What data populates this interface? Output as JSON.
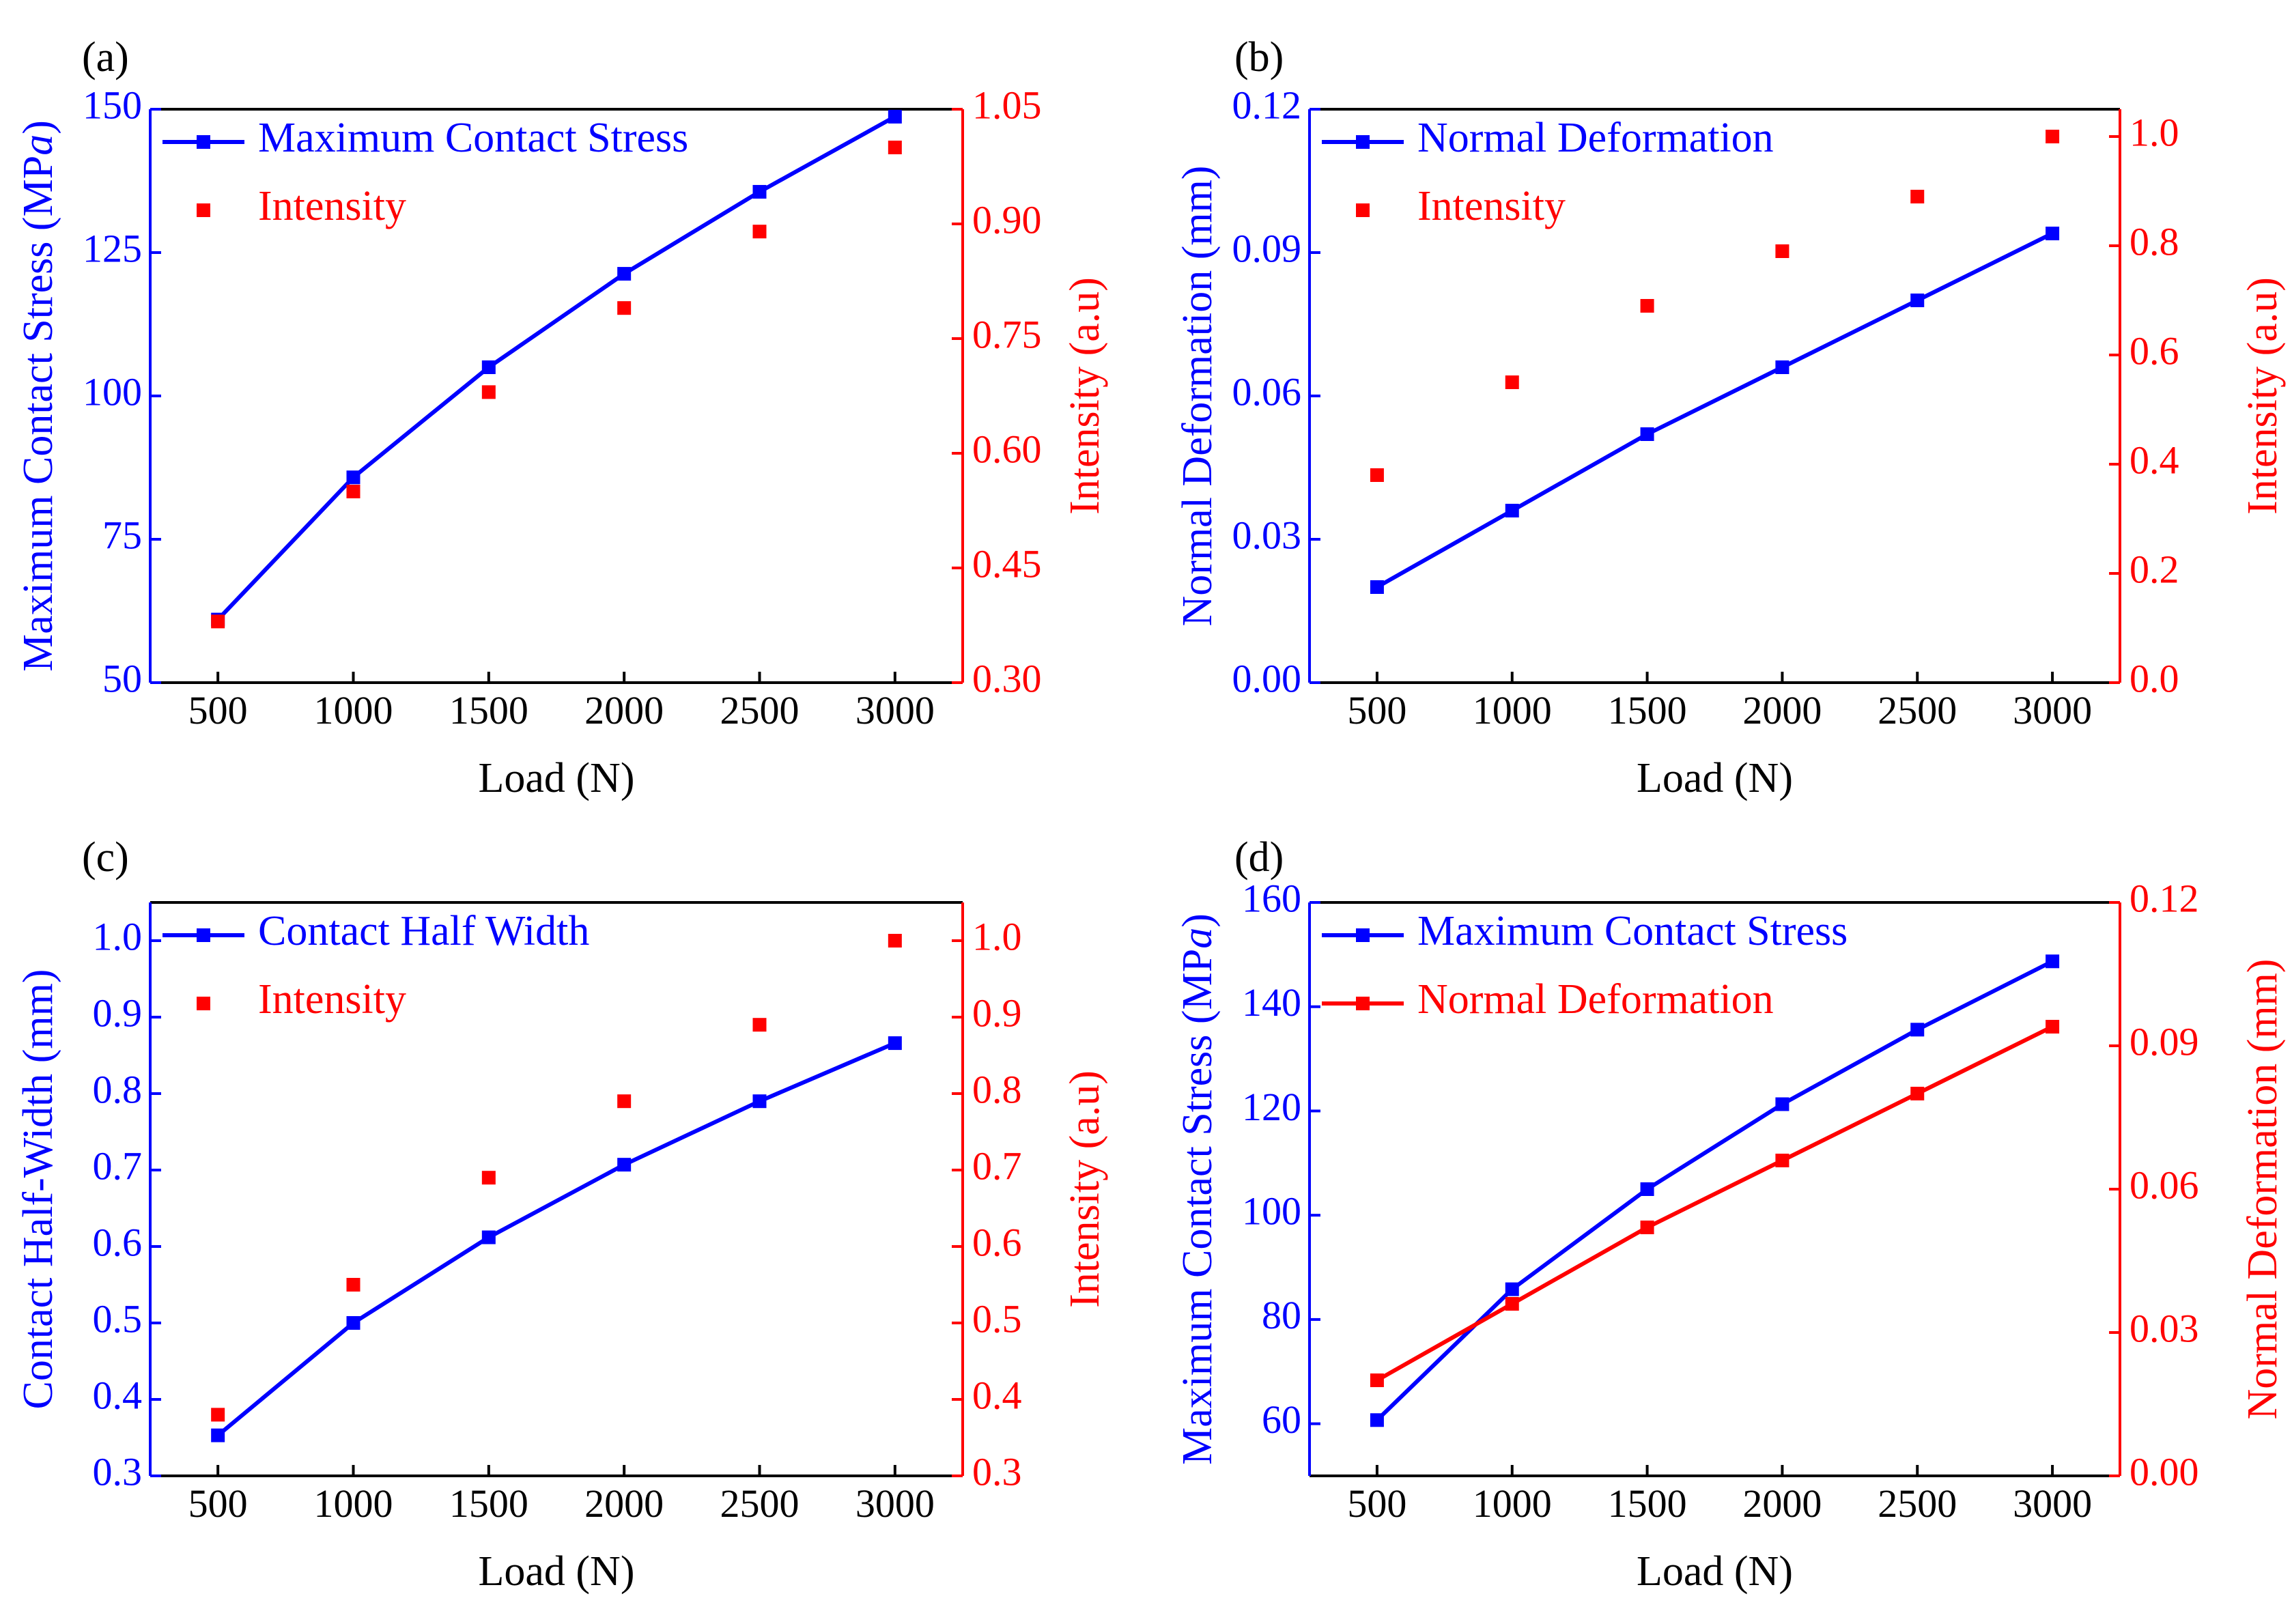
{
  "colors": {
    "primary_series": "#0000ff",
    "secondary_series": "#ff0000",
    "axes": "#000000"
  },
  "chart_data": [
    {
      "panel_label": "(a)",
      "type": "line",
      "title": "",
      "xlabel": "Load (N)",
      "ylabel": "Maximum Contact Stress (MPa)",
      "ylabel_parts": [
        "Maximum Contact Stress (MP",
        "a",
        ")"
      ],
      "y2label": "Intensity (a.u)",
      "xlim": [
        250,
        3250
      ],
      "x": [
        500,
        1000,
        1500,
        2000,
        2500,
        3000
      ],
      "x_tick_labels": [
        "500",
        "1000",
        "1500",
        "2000",
        "2500",
        "3000"
      ],
      "ylim": [
        50,
        150
      ],
      "y_ticks": [
        50,
        75,
        100,
        125,
        150
      ],
      "y_tick_labels": [
        "50",
        "75",
        "100",
        "125",
        "150"
      ],
      "y2lim": [
        0.3,
        1.05
      ],
      "y2_ticks": [
        0.3,
        0.45,
        0.6,
        0.75,
        0.9,
        1.05
      ],
      "y2_tick_labels": [
        "0.30",
        "0.45",
        "0.60",
        "0.75",
        "0.90",
        "1.05"
      ],
      "legend_position": "top-left",
      "series": [
        {
          "name": "Maximum Contact Stress",
          "axis": "left",
          "style": "line-marker",
          "color": "#0000ff",
          "values": [
            61.0,
            85.8,
            105.0,
            121.3,
            135.6,
            148.7
          ]
        },
        {
          "name": "Intensity",
          "axis": "right",
          "style": "marker",
          "color": "#ff0000",
          "values": [
            0.38,
            0.55,
            0.68,
            0.79,
            0.89,
            1.0
          ]
        }
      ]
    },
    {
      "panel_label": "(b)",
      "type": "line",
      "title": "",
      "xlabel": "Load (N)",
      "ylabel": "Normal Deformation (mm)",
      "y2label": "Intensity (a.u)",
      "xlim": [
        250,
        3250
      ],
      "x": [
        500,
        1000,
        1500,
        2000,
        2500,
        3000
      ],
      "x_tick_labels": [
        "500",
        "1000",
        "1500",
        "2000",
        "2500",
        "3000"
      ],
      "ylim": [
        0.0,
        0.12
      ],
      "y_ticks": [
        0.0,
        0.03,
        0.06,
        0.09,
        0.12
      ],
      "y_tick_labels": [
        "0.00",
        "0.03",
        "0.06",
        "0.09",
        "0.12"
      ],
      "y2lim": [
        0.0,
        1.05
      ],
      "y2_ticks": [
        0.0,
        0.2,
        0.4,
        0.6,
        0.8,
        1.0
      ],
      "y2_tick_labels": [
        "0.0",
        "0.2",
        "0.4",
        "0.6",
        "0.8",
        "1.0"
      ],
      "legend_position": "top-left",
      "series": [
        {
          "name": "Normal Deformation",
          "axis": "left",
          "style": "line-marker",
          "color": "#0000ff",
          "values": [
            0.02,
            0.036,
            0.052,
            0.066,
            0.08,
            0.094
          ]
        },
        {
          "name": "Intensity",
          "axis": "right",
          "style": "marker",
          "color": "#ff0000",
          "values": [
            0.38,
            0.55,
            0.69,
            0.79,
            0.89,
            1.0
          ]
        }
      ]
    },
    {
      "panel_label": "(c)",
      "type": "line",
      "title": "",
      "xlabel": "Load (N)",
      "ylabel": "Contact Half-Width (mm)",
      "y2label": "Intensity (a.u)",
      "xlim": [
        250,
        3250
      ],
      "x": [
        500,
        1000,
        1500,
        2000,
        2500,
        3000
      ],
      "x_tick_labels": [
        "500",
        "1000",
        "1500",
        "2000",
        "2500",
        "3000"
      ],
      "ylim": [
        0.3,
        1.05
      ],
      "y_ticks": [
        0.3,
        0.4,
        0.5,
        0.6,
        0.7,
        0.8,
        0.9,
        1.0
      ],
      "y_tick_labels": [
        "0.3",
        "0.4",
        "0.5",
        "0.6",
        "0.7",
        "0.8",
        "0.9",
        "1.0"
      ],
      "y2lim": [
        0.3,
        1.05
      ],
      "y2_ticks": [
        0.3,
        0.4,
        0.5,
        0.6,
        0.7,
        0.8,
        0.9,
        1.0
      ],
      "y2_tick_labels": [
        "0.3",
        "0.4",
        "0.5",
        "0.6",
        "0.7",
        "0.8",
        "0.9",
        "1.0"
      ],
      "legend_position": "top-left",
      "series": [
        {
          "name": "Contact Half Width",
          "axis": "left",
          "style": "line-marker",
          "color": "#0000ff",
          "values": [
            0.353,
            0.5,
            0.612,
            0.707,
            0.79,
            0.866
          ]
        },
        {
          "name": "Intensity",
          "axis": "right",
          "style": "marker",
          "color": "#ff0000",
          "values": [
            0.38,
            0.55,
            0.69,
            0.79,
            0.89,
            1.0
          ]
        }
      ]
    },
    {
      "panel_label": "(d)",
      "type": "line",
      "title": "",
      "xlabel": "Load (N)",
      "ylabel": "Maximum Contact Stress (MPa)",
      "ylabel_parts": [
        "Maximum Contact Stress (MP",
        "a",
        ")"
      ],
      "y2label": "Normal Deformation (mm)",
      "xlim": [
        250,
        3250
      ],
      "x": [
        500,
        1000,
        1500,
        2000,
        2500,
        3000
      ],
      "x_tick_labels": [
        "500",
        "1000",
        "1500",
        "2000",
        "2500",
        "3000"
      ],
      "ylim": [
        50,
        160
      ],
      "y_ticks": [
        60,
        80,
        100,
        120,
        140,
        160
      ],
      "y_tick_labels": [
        "60",
        "80",
        "100",
        "120",
        "140",
        "160"
      ],
      "y2lim": [
        0.0,
        0.12
      ],
      "y2_ticks": [
        0.0,
        0.03,
        0.06,
        0.09,
        0.12
      ],
      "y2_tick_labels": [
        "0.00",
        "0.03",
        "0.06",
        "0.09",
        "0.12"
      ],
      "legend_position": "top-left",
      "series": [
        {
          "name": "Maximum Contact Stress",
          "axis": "left",
          "style": "line-marker",
          "color": "#0000ff",
          "values": [
            60.7,
            85.8,
            105.0,
            121.3,
            135.6,
            148.7
          ]
        },
        {
          "name": "Normal Deformation",
          "axis": "right",
          "style": "line-marker",
          "color": "#ff0000",
          "values": [
            0.02,
            0.036,
            0.052,
            0.066,
            0.08,
            0.094
          ]
        }
      ]
    }
  ]
}
